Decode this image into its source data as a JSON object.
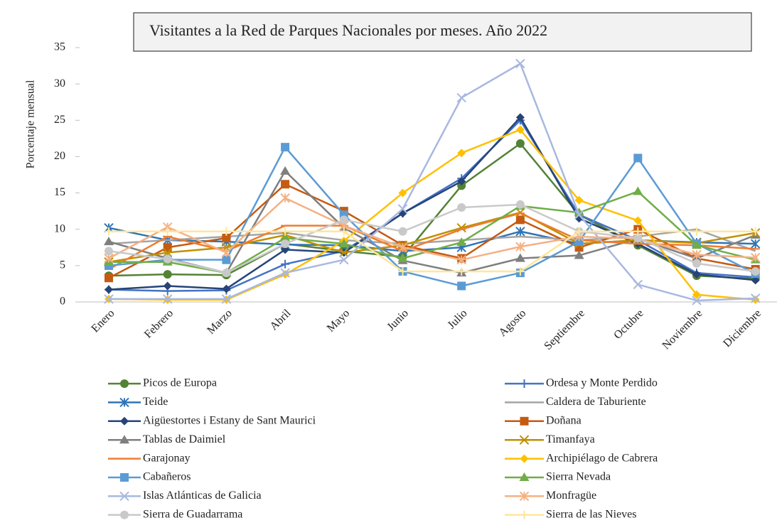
{
  "chart_data": {
    "type": "line",
    "title": "Visitantes a la Red de Parques Nacionales por meses. Año 2022",
    "y_label": "Porcentaje mensual",
    "categories": [
      "Enero",
      "Febrero",
      "Marzo",
      "Abril",
      "Mayo",
      "Junio",
      "Julio",
      "Agosto",
      "Septiembre",
      "Octubre",
      "Noviembre",
      "Diciembre"
    ],
    "ylim": [
      0,
      35
    ],
    "yticks": [
      0,
      5,
      10,
      15,
      20,
      25,
      30,
      35
    ],
    "grid": false,
    "legend": "bottom",
    "series": [
      {
        "name": "Picos de Europa",
        "color": "#548235",
        "marker": "circle",
        "values": [
          3.6,
          3.8,
          3.7,
          8.0,
          7.0,
          6.2,
          16.0,
          21.8,
          12.0,
          7.8,
          3.6,
          3.2
        ]
      },
      {
        "name": "Ordesa y Monte Perdido",
        "color": "#4472c4",
        "marker": "plus",
        "values": [
          1.7,
          1.5,
          1.6,
          5.2,
          7.0,
          12.2,
          17.0,
          25.0,
          12.0,
          8.5,
          4.0,
          3.4
        ]
      },
      {
        "name": "Teide",
        "color": "#2e75b6",
        "marker": "star",
        "values": [
          10.2,
          8.5,
          8.3,
          7.9,
          7.8,
          7.0,
          7.5,
          9.7,
          8.0,
          8.5,
          8.2,
          8.0
        ]
      },
      {
        "name": "Caldera de Taburiente",
        "color": "#a5a5a5",
        "marker": "none",
        "values": [
          8.0,
          8.5,
          9.0,
          9.5,
          8.5,
          8.0,
          8.5,
          9.0,
          8.5,
          9.0,
          10.0,
          7.0
        ]
      },
      {
        "name": "Aigüestortes i Estany de Sant Maurici",
        "color": "#264478",
        "marker": "diamond",
        "values": [
          1.7,
          2.2,
          1.8,
          7.2,
          6.8,
          12.2,
          16.6,
          25.4,
          11.5,
          8.0,
          3.8,
          3.0
        ]
      },
      {
        "name": "Doñana",
        "color": "#c55a11",
        "marker": "square",
        "values": [
          3.3,
          7.5,
          8.8,
          16.2,
          12.5,
          7.8,
          6.0,
          11.3,
          7.5,
          10.0,
          6.0,
          4.5
        ]
      },
      {
        "name": "Tablas de Daimiel",
        "color": "#7f7f7f",
        "marker": "triangle",
        "values": [
          8.3,
          6.0,
          4.0,
          18.0,
          10.2,
          5.7,
          4.0,
          6.0,
          6.4,
          8.7,
          6.0,
          9.2
        ]
      },
      {
        "name": "Timanfaya",
        "color": "#bf9000",
        "marker": "x",
        "values": [
          5.5,
          6.8,
          7.5,
          9.2,
          6.8,
          7.8,
          10.2,
          12.3,
          8.0,
          8.5,
          8.1,
          9.5
        ]
      },
      {
        "name": "Garajonay",
        "color": "#ed7d31",
        "marker": "dash",
        "values": [
          4.5,
          9.0,
          7.0,
          10.5,
          10.5,
          7.0,
          10.0,
          12.2,
          8.5,
          8.0,
          7.8,
          7.3
        ]
      },
      {
        "name": "Archipiélago de Cabrera",
        "color": "#ffc000",
        "marker": "diamond",
        "values": [
          0.4,
          0.3,
          0.3,
          3.8,
          8.4,
          15.0,
          20.5,
          23.7,
          14.0,
          11.2,
          1.0,
          0.3
        ]
      },
      {
        "name": "Cabañeros",
        "color": "#5b9bd5",
        "marker": "square",
        "values": [
          5.0,
          5.8,
          5.8,
          21.3,
          12.0,
          4.2,
          2.2,
          4.0,
          8.3,
          19.8,
          8.0,
          3.9
        ]
      },
      {
        "name": "Sierra Nevada",
        "color": "#70ad47",
        "marker": "triangle",
        "values": [
          5.5,
          5.5,
          4.0,
          8.8,
          8.0,
          6.0,
          8.2,
          13.2,
          12.3,
          15.2,
          7.8,
          5.8
        ]
      },
      {
        "name": "Islas Atlánticas de Galicia",
        "color": "#a9b8e0",
        "marker": "x",
        "values": [
          0.4,
          0.4,
          0.4,
          4.0,
          5.8,
          12.8,
          28.1,
          32.8,
          12.0,
          2.4,
          0.2,
          0.5
        ]
      },
      {
        "name": "Monfragüe",
        "color": "#f4b183",
        "marker": "star",
        "values": [
          6.0,
          10.3,
          6.8,
          14.3,
          10.5,
          7.5,
          5.8,
          7.6,
          9.0,
          8.7,
          6.5,
          6.1
        ]
      },
      {
        "name": "Sierra de Guadarrama",
        "color": "#c9c9c9",
        "marker": "circle",
        "values": [
          7.0,
          5.9,
          4.0,
          8.0,
          11.3,
          9.7,
          13.0,
          13.4,
          9.7,
          8.8,
          5.3,
          4.2
        ]
      },
      {
        "name": "Sierra de las Nieves",
        "color": "#ffe699",
        "marker": "plus",
        "values": [
          9.7,
          9.7,
          9.7,
          9.7,
          9.7,
          4.2,
          4.2,
          4.2,
          9.7,
          9.7,
          9.7,
          9.7
        ]
      }
    ]
  }
}
